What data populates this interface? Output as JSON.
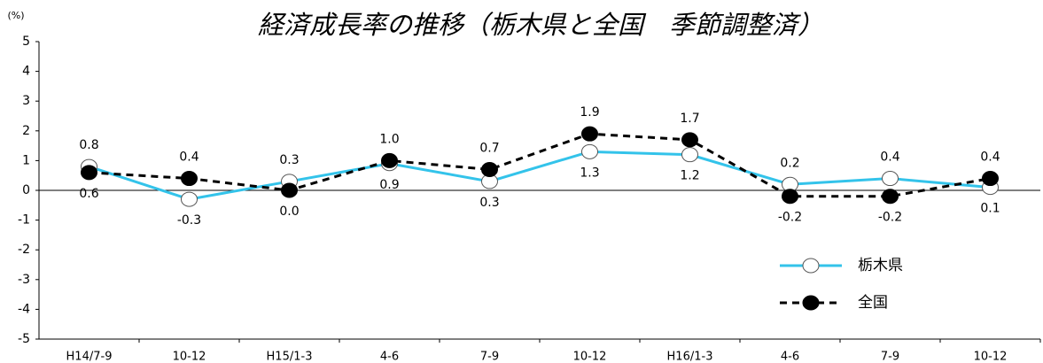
{
  "chart_data": {
    "type": "line",
    "title": "経済成長率の推移（栃木県と全国　季節調整済）",
    "y_label": "(%)",
    "categories": [
      "H14/7-9",
      "10-12",
      "H15/1-3",
      "4-6",
      "7-9",
      "10-12",
      "H16/1-3",
      "4-6",
      "7-9",
      "10-12"
    ],
    "series": [
      {
        "name": "栃木県",
        "color": "#33c3ea",
        "label_color": "#3a6fd8",
        "marker": "open",
        "values": [
          0.8,
          -0.3,
          0.3,
          0.9,
          0.3,
          1.3,
          1.2,
          0.2,
          0.4,
          0.1
        ],
        "value_labels": [
          "0.8",
          "-0.3",
          "0.3",
          "0.9",
          "0.3",
          "1.3",
          "1.2",
          "0.2",
          "0.4",
          "0.1"
        ]
      },
      {
        "name": "全国",
        "color": "#000000",
        "label_color": "#000000",
        "marker": "filled",
        "dashed": true,
        "values": [
          0.6,
          0.4,
          0.0,
          1.0,
          0.7,
          1.9,
          1.7,
          -0.2,
          -0.2,
          0.4
        ],
        "value_labels": [
          "0.6",
          "0.4",
          "0.0",
          "1.0",
          "0.7",
          "1.9",
          "1.7",
          "-0.2",
          "-0.2",
          "0.4"
        ]
      }
    ],
    "ylim": [
      -5,
      5
    ],
    "yticks": [
      -5,
      -4,
      -3,
      -2,
      -1,
      0,
      1,
      2,
      3,
      4,
      5
    ],
    "legend": "lower right"
  }
}
